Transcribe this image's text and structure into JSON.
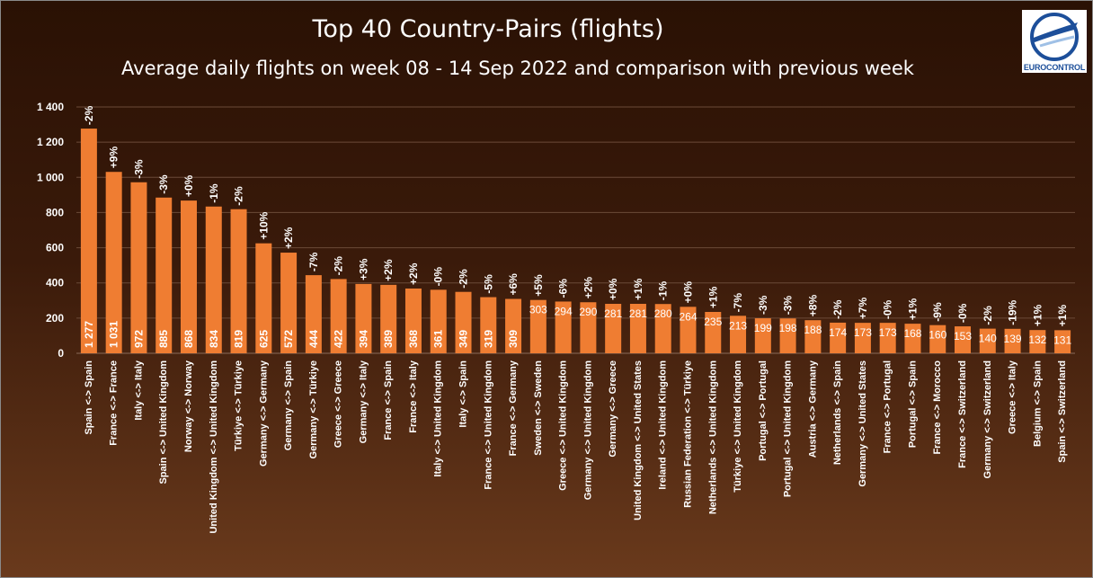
{
  "title": "Top 40 Country-Pairs (flights)",
  "subtitle": "Average daily flights on week 08 - 14 Sep 2022 and comparison with previous week",
  "logo_text": "EUROCONTROL",
  "colors": {
    "bar": "#ef7d32",
    "text": "#ffffff",
    "grid": "#6b4a38"
  },
  "chart_data": {
    "type": "bar",
    "title": "Top 40 Country-Pairs (flights)",
    "subtitle": "Average daily flights on week 08 - 14 Sep 2022 and comparison with previous week",
    "xlabel": "",
    "ylabel": "",
    "ylim": [
      0,
      1400
    ],
    "yticks": [
      0,
      200,
      400,
      600,
      800,
      1000,
      1200,
      1400
    ],
    "ytick_labels": [
      "0",
      "200",
      "400",
      "600",
      "800",
      "1 000",
      "1 200",
      "1 400"
    ],
    "grid": true,
    "categories": [
      "Spain <-> Spain",
      "France <-> France",
      "Italy <-> Italy",
      "Spain <-> United Kingdom",
      "Norway <-> Norway",
      "United Kingdom <-> United Kingdom",
      "Türkiye <-> Türkiye",
      "Germany <-> Germany",
      "Germany <-> Spain",
      "Germany <-> Türkiye",
      "Greece <-> Greece",
      "Germany <-> Italy",
      "France <-> Spain",
      "France <-> Italy",
      "Italy <-> United Kingdom",
      "Italy <-> Spain",
      "France <-> United Kingdom",
      "France <-> Germany",
      "Sweden <-> Sweden",
      "Greece <-> United Kingdom",
      "Germany <-> United Kingdom",
      "Germany <-> Greece",
      "United Kingdom <-> United States",
      "Ireland <-> United Kingdom",
      "Russian Federation <-> Türkiye",
      "Netherlands <-> United Kingdom",
      "Türkiye <-> United Kingdom",
      "Portugal <-> Portugal",
      "Portugal <-> United Kingdom",
      "Austria <-> Germany",
      "Netherlands <-> Spain",
      "Germany <-> United States",
      "France <-> Portugal",
      "Portugal <-> Spain",
      "France <-> Morocco",
      "France <-> Switzerland",
      "Germany <-> Switzerland",
      "Greece <-> Italy",
      "Belgium <-> Spain",
      "Spain <-> Switzerland"
    ],
    "values": [
      1277,
      1031,
      972,
      885,
      868,
      834,
      819,
      625,
      572,
      444,
      422,
      394,
      389,
      368,
      361,
      349,
      319,
      309,
      303,
      294,
      290,
      281,
      281,
      280,
      264,
      235,
      213,
      199,
      198,
      188,
      174,
      173,
      173,
      168,
      160,
      153,
      140,
      139,
      132,
      131
    ],
    "value_labels": [
      "1 277",
      "1 031",
      "972",
      "885",
      "868",
      "834",
      "819",
      "625",
      "572",
      "444",
      "422",
      "394",
      "389",
      "368",
      "361",
      "349",
      "319",
      "309",
      "303",
      "294",
      "290",
      "281",
      "281",
      "280",
      "264",
      "235",
      "213",
      "199",
      "198",
      "188",
      "174",
      "173",
      "173",
      "168",
      "160",
      "153",
      "140",
      "139",
      "132",
      "131"
    ],
    "changes": [
      "-2%",
      "+9%",
      "-3%",
      "-3%",
      "+0%",
      "-1%",
      "-2%",
      "+10%",
      "+2%",
      "-7%",
      "-2%",
      "+3%",
      "+2%",
      "+2%",
      "-0%",
      "-2%",
      "-5%",
      "+6%",
      "+5%",
      "-6%",
      "+2%",
      "+0%",
      "+1%",
      "-1%",
      "+0%",
      "+1%",
      "-7%",
      "-3%",
      "-3%",
      "+8%",
      "-2%",
      "+7%",
      "-0%",
      "+1%",
      "-9%",
      "-0%",
      "-2%",
      "-19%",
      "+1%",
      "+1%"
    ]
  }
}
